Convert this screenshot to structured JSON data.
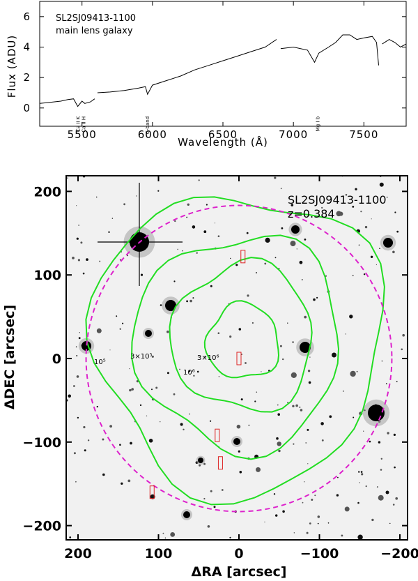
{
  "chart_data": [
    {
      "type": "line",
      "title": "SL2SJ09413-1100",
      "subtitle": "main lens galaxy",
      "xlabel": "Wavelength (Å)",
      "ylabel": "Flux (ADU)",
      "xlim": [
        5200,
        7800
      ],
      "ylim": [
        -1.2,
        7
      ],
      "x_ticks": [
        "5500",
        "6000",
        "6500",
        "7000",
        "7500"
      ],
      "y_ticks": [
        "0",
        "2",
        "4",
        "6"
      ],
      "annotations": [
        {
          "label": "Ca II K",
          "x": 5470
        },
        {
          "label": "Ca II H",
          "x": 5510
        },
        {
          "label": "G-band",
          "x": 5960
        },
        {
          "label": "Mg I b",
          "x": 7170
        }
      ],
      "series": [
        {
          "x": [
            5200,
            5250,
            5300,
            5350,
            5400,
            5440,
            5470,
            5500,
            5520,
            5560,
            5590
          ],
          "y": [
            0.3,
            0.35,
            0.4,
            0.45,
            0.55,
            0.6,
            0.1,
            0.45,
            0.3,
            0.4,
            0.6
          ]
        },
        {
          "x": [
            5610,
            5700,
            5800,
            5900,
            5950,
            5965,
            6000,
            6100,
            6200,
            6300,
            6400,
            6500,
            6600,
            6700,
            6800,
            6880
          ],
          "y": [
            1.0,
            1.05,
            1.15,
            1.3,
            1.4,
            0.9,
            1.5,
            1.8,
            2.1,
            2.5,
            2.8,
            3.1,
            3.4,
            3.7,
            4.0,
            4.5
          ]
        },
        {
          "x": [
            6910,
            7000,
            7100,
            7150,
            7180,
            7250,
            7300,
            7350,
            7400,
            7450,
            7500,
            7560,
            7590,
            7605
          ],
          "y": [
            3.9,
            4.0,
            3.8,
            3.0,
            3.6,
            4.0,
            4.3,
            4.8,
            4.8,
            4.5,
            4.6,
            4.7,
            4.3,
            2.8
          ]
        },
        {
          "x": [
            7630,
            7680,
            7720,
            7760,
            7800
          ],
          "y": [
            4.2,
            4.5,
            4.3,
            4.0,
            4.2
          ]
        }
      ]
    },
    {
      "type": "scatter",
      "title": "SL2SJ09413-1100",
      "subtitle": "z=0.384",
      "xlabel": "ΔRA [arcsec]",
      "ylabel": "ΔDEC [arcsec]",
      "xlim": [
        215,
        -215
      ],
      "ylim": [
        -213,
        213
      ],
      "x_ticks": [
        "200",
        "100",
        "0",
        "−100",
        "−200"
      ],
      "y_ticks": [
        "−200",
        "−100",
        "0",
        "100",
        "200"
      ],
      "contour_labels": [
        "10⁵",
        "3×10⁵",
        "10⁶",
        "3×10⁶"
      ],
      "contour_color": "#22dd22",
      "circle_color": "#dd22cc",
      "slit_color": "#dd2222",
      "circle": {
        "cx": 0,
        "cy": 0,
        "r": 190
      },
      "slits": [
        {
          "x": -5,
          "y": 122
        },
        {
          "x": 0,
          "y": 0
        },
        {
          "x": 27,
          "y": -92
        },
        {
          "x": 23,
          "y": -125
        },
        {
          "x": 108,
          "y": -160
        }
      ]
    }
  ]
}
